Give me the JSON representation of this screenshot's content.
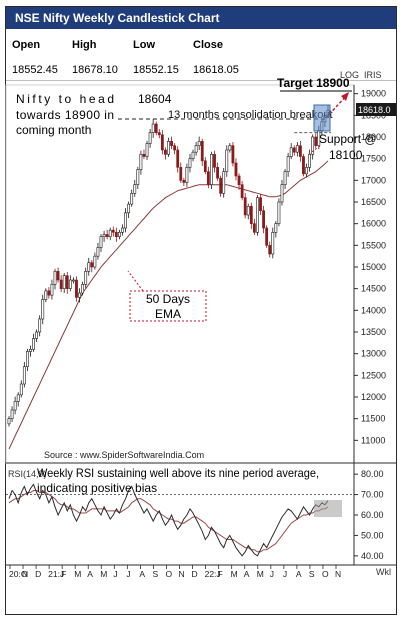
{
  "title": "NSE Nifty Weekly Candlestick Chart",
  "ohlc": {
    "headers": [
      "Open",
      "High",
      "Low",
      "Close"
    ],
    "values": [
      "18552.45",
      "18678.10",
      "18552.15",
      "18618.05"
    ]
  },
  "colors": {
    "title_bg": "#1f3d7a",
    "candle_up": "#1b1b1b",
    "candle_down": "#8b1a1a",
    "ema": "#8b3a3a",
    "rsi": "#2b2b2b",
    "rsi_avg": "#9a4a4a",
    "annotation_arrow": "#c0152b",
    "highlight_box": "#5b8ac9",
    "rsi_highlight": "#9e9e9e"
  },
  "annotations": {
    "nifty_line1": "Nifty to head",
    "nifty_line2": "towards 18900 in",
    "nifty_line3": "coming month",
    "peak_label": "18604",
    "consolidation": "13 months consolidation breakout",
    "target": "Target 18900",
    "support_line1": "Support @",
    "support_line2": "18100",
    "ema_line1": "50 Days",
    "ema_line2": "EMA",
    "source": "Source : www.SpiderSoftwareIndia.Com",
    "rsi_line1": "Weekly RSI sustaining well above its nine period average,",
    "rsi_line2": "indicating positive bias",
    "log_label": "LOG",
    "iris_label": "IRIS",
    "last_price": "18618.0",
    "rsi_panel_label": "RSI(14,9)",
    "x_unit": "Wkl"
  },
  "chart_data": [
    {
      "type": "candlestick",
      "title": "NSE Nifty Weekly Candlestick Chart",
      "y_ticks": [
        11000,
        11500,
        12000,
        12500,
        13000,
        13500,
        14000,
        14500,
        15000,
        15500,
        16000,
        16500,
        17000,
        17500,
        18000,
        18500,
        19000
      ],
      "ylim": [
        10500,
        19200
      ],
      "x_tick_labels": [
        "20:O",
        "N",
        "D",
        "21:J",
        "F",
        "M",
        "A",
        "M",
        "J",
        "J",
        "A",
        "S",
        "O",
        "N",
        "D",
        "22:J",
        "F",
        "M",
        "A",
        "M",
        "J",
        "J",
        "A",
        "S",
        "O",
        "N"
      ],
      "close_series": [
        11500,
        11700,
        11900,
        12050,
        12300,
        12700,
        13050,
        13100,
        13350,
        13500,
        13800,
        14250,
        14450,
        14350,
        14600,
        14900,
        14700,
        14500,
        14800,
        14500,
        14700,
        14700,
        14300,
        14400,
        14600,
        14900,
        15100,
        15000,
        15250,
        15450,
        15700,
        15750,
        15700,
        15850,
        15800,
        15700,
        15800,
        15900,
        16250,
        16450,
        16700,
        16900,
        17250,
        17600,
        17550,
        17850,
        18100,
        18300,
        18100,
        18050,
        17700,
        17600,
        17900,
        17800,
        17700,
        17300,
        17000,
        16950,
        17300,
        17500,
        17650,
        17800,
        17900,
        17450,
        17200,
        16900,
        17600,
        17300,
        17050,
        16700,
        17200,
        17700,
        17800,
        17400,
        17100,
        16900,
        16600,
        16200,
        16400,
        16000,
        15800,
        16600,
        16300,
        15900,
        15500,
        15300,
        15800,
        16000,
        16500,
        16900,
        17200,
        17550,
        17750,
        17650,
        17800,
        17550,
        17150,
        17300,
        17600,
        18000,
        17800,
        18150,
        18350,
        18500,
        18618
      ],
      "ema_50": [
        10800,
        10950,
        11100,
        11250,
        11400,
        11550,
        11700,
        11850,
        12000,
        12150,
        12300,
        12450,
        12600,
        12750,
        12900,
        13050,
        13200,
        13350,
        13500,
        13650,
        13800,
        13950,
        14100,
        14250,
        14400,
        14500,
        14600,
        14700,
        14800,
        14900,
        15000,
        15080,
        15160,
        15240,
        15320,
        15400,
        15480,
        15560,
        15640,
        15720,
        15800,
        15880,
        15960,
        16040,
        16120,
        16200,
        16280,
        16360,
        16420,
        16480,
        16540,
        16600,
        16640,
        16680,
        16720,
        16760,
        16780,
        16800,
        16820,
        16840,
        16860,
        16880,
        16900,
        16900,
        16900,
        16900,
        16900,
        16900,
        16900,
        16900,
        16900,
        16900,
        16880,
        16860,
        16840,
        16820,
        16800,
        16780,
        16760,
        16740,
        16720,
        16700,
        16680,
        16660,
        16640,
        16620,
        16620,
        16620,
        16640,
        16660,
        16700,
        16760,
        16820,
        16880,
        16940,
        17000,
        17040,
        17080,
        17120,
        17160,
        17200,
        17260,
        17320,
        17380,
        17450
      ],
      "levels": {
        "consolidation_top": 18604,
        "support": 18100,
        "target": 18900
      }
    },
    {
      "type": "line",
      "title": "RSI(14,9)",
      "y_ticks": [
        40,
        50,
        60,
        70,
        80
      ],
      "ylim": [
        36,
        84
      ],
      "reference_line": 70,
      "rsi": [
        68,
        72,
        70,
        66,
        71,
        74,
        70,
        73,
        75,
        71,
        68,
        72,
        70,
        66,
        69,
        64,
        60,
        63,
        66,
        62,
        65,
        60,
        57,
        60,
        64,
        62,
        66,
        68,
        65,
        62,
        60,
        64,
        61,
        58,
        60,
        63,
        61,
        65,
        68,
        72,
        74,
        70,
        67,
        64,
        61,
        63,
        60,
        57,
        60,
        62,
        58,
        55,
        57,
        60,
        56,
        53,
        55,
        58,
        60,
        63,
        61,
        58,
        55,
        52,
        48,
        50,
        54,
        52,
        49,
        46,
        44,
        48,
        50,
        47,
        44,
        42,
        40,
        42,
        45,
        43,
        41,
        40,
        43,
        46,
        44,
        47,
        50,
        53,
        56,
        59,
        61,
        63,
        62,
        60,
        58,
        61,
        64,
        62,
        60,
        63,
        65,
        64,
        66,
        65,
        67
      ],
      "rsi_avg": [
        66,
        67,
        68,
        68,
        69,
        70,
        71,
        71,
        72,
        72,
        71,
        71,
        71,
        70,
        69,
        68,
        66,
        65,
        65,
        64,
        63,
        63,
        62,
        61,
        61,
        61,
        62,
        63,
        63,
        63,
        63,
        63,
        62,
        62,
        62,
        62,
        61,
        62,
        63,
        64,
        66,
        67,
        68,
        68,
        67,
        66,
        65,
        63,
        62,
        61,
        60,
        59,
        58,
        58,
        57,
        57,
        56,
        56,
        57,
        58,
        59,
        59,
        58,
        57,
        56,
        54,
        53,
        52,
        51,
        50,
        49,
        48,
        48,
        48,
        47,
        46,
        45,
        44,
        44,
        43,
        43,
        42,
        42,
        43,
        43,
        44,
        45,
        46,
        48,
        50,
        52,
        54,
        56,
        57,
        58,
        59,
        60,
        60,
        61,
        61,
        62,
        62,
        63,
        63,
        64
      ]
    }
  ]
}
